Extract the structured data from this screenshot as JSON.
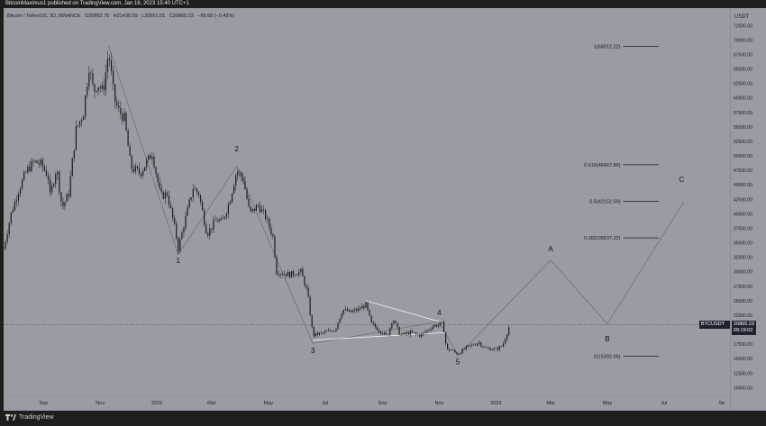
{
  "header": "BitcoinMaximus1 published on TradingView.com, Jan 16, 2023 15:40 UTC+1",
  "legend": {
    "symbol": "Bitcoin / TetherUS, 2D, BINANCE",
    "open": "O20952.76",
    "high": "H21439.59",
    "low": "L20551.01",
    "close": "C20865.23",
    "change": "−89.69 (−0.43%)"
  },
  "currency_label": "USDT",
  "footer": {
    "brand": "TradingView",
    "icon": "tradingview-logo-icon"
  },
  "price_badge": {
    "symbol": "BTCUSDT",
    "price": "20865.23",
    "countdown": "09:19:02"
  },
  "colors": {
    "background": "#9a9ca4",
    "candles": "#1b1b1b",
    "lines": "#6f7278",
    "fib_lines": "#1b1b1b",
    "triangle": "#f2f2f2"
  },
  "chart_data": {
    "type": "candlestick",
    "y_ticks": [
      10000,
      12500,
      15000,
      17500,
      20000,
      22500,
      25000,
      27500,
      30000,
      32500,
      35000,
      37500,
      40000,
      42500,
      45000,
      47500,
      50000,
      52500,
      55000,
      57500,
      60000,
      62500,
      65000,
      67500,
      70000,
      72500
    ],
    "y_tick_labels": [
      "10000.00",
      "12500.00",
      "15000.00",
      "17500.00",
      "20000.00",
      "22500.00",
      "25000.00",
      "27500.00",
      "30000.00",
      "32500.00",
      "35000.00",
      "37500.00",
      "40000.00",
      "42500.00",
      "45000.00",
      "47500.00",
      "50000.00",
      "52500.00",
      "55000.00",
      "57500.00",
      "60000.00",
      "62500.00",
      "65000.00",
      "67500.00",
      "70000.00",
      "72500.00"
    ],
    "x_tick_labels": [
      "Sep",
      "Nov",
      "2022",
      "Mar",
      "May",
      "Jul",
      "Sep",
      "Nov",
      "2023",
      "Mar",
      "May",
      "Jul",
      "Se"
    ],
    "x_tick_dates": [
      "2021-09-01",
      "2021-11-01",
      "2022-01-01",
      "2022-03-01",
      "2022-05-01",
      "2022-07-01",
      "2022-09-01",
      "2022-11-01",
      "2023-01-01",
      "2023-03-01",
      "2023-05-01",
      "2023-07-01",
      "2023-09-01"
    ],
    "ylim": [
      8500,
      75500
    ],
    "xlim": [
      "2021-07-20",
      "2023-09-10"
    ],
    "price_path": [
      [
        "2021-07-20",
        34000
      ],
      [
        "2021-07-28",
        40000
      ],
      [
        "2021-08-05",
        44000
      ],
      [
        "2021-08-14",
        47500
      ],
      [
        "2021-08-22",
        49000
      ],
      [
        "2021-08-30",
        48500
      ],
      [
        "2021-09-07",
        46000
      ],
      [
        "2021-09-08",
        43000
      ],
      [
        "2021-09-15",
        48000
      ],
      [
        "2021-09-21",
        41000
      ],
      [
        "2021-09-28",
        43500
      ],
      [
        "2021-10-06",
        54500
      ],
      [
        "2021-10-14",
        57500
      ],
      [
        "2021-10-20",
        65500
      ],
      [
        "2021-10-25",
        61000
      ],
      [
        "2021-10-29",
        62500
      ],
      [
        "2021-11-04",
        61000
      ],
      [
        "2021-11-10",
        68000
      ],
      [
        "2021-11-16",
        60000
      ],
      [
        "2021-11-20",
        58000
      ],
      [
        "2021-11-27",
        56500
      ],
      [
        "2021-12-04",
        48000
      ],
      [
        "2021-12-14",
        47000
      ],
      [
        "2021-12-27",
        50500
      ],
      [
        "2022-01-05",
        43000
      ],
      [
        "2022-01-12",
        43500
      ],
      [
        "2022-01-21",
        37000
      ],
      [
        "2022-01-24",
        34000
      ],
      [
        "2022-01-30",
        38000
      ],
      [
        "2022-02-09",
        44500
      ],
      [
        "2022-02-15",
        43500
      ],
      [
        "2022-02-24",
        36500
      ],
      [
        "2022-03-06",
        39000
      ],
      [
        "2022-03-12",
        38500
      ],
      [
        "2022-03-20",
        42000
      ],
      [
        "2022-03-28",
        47500
      ],
      [
        "2022-04-04",
        46000
      ],
      [
        "2022-04-11",
        40000
      ],
      [
        "2022-04-20",
        41500
      ],
      [
        "2022-04-28",
        39500
      ],
      [
        "2022-05-06",
        36000
      ],
      [
        "2022-05-10",
        30000
      ],
      [
        "2022-05-24",
        29500
      ],
      [
        "2022-06-05",
        30000
      ],
      [
        "2022-06-12",
        26500
      ],
      [
        "2022-06-18",
        19000
      ],
      [
        "2022-06-30",
        19500
      ],
      [
        "2022-07-12",
        20000
      ],
      [
        "2022-07-20",
        23500
      ],
      [
        "2022-07-28",
        23000
      ],
      [
        "2022-08-06",
        23500
      ],
      [
        "2022-08-14",
        24300
      ],
      [
        "2022-08-20",
        21000
      ],
      [
        "2022-08-28",
        20000
      ],
      [
        "2022-09-06",
        18800
      ],
      [
        "2022-09-12",
        22000
      ],
      [
        "2022-09-20",
        19000
      ],
      [
        "2022-10-01",
        19500
      ],
      [
        "2022-10-12",
        19000
      ],
      [
        "2022-10-26",
        20700
      ],
      [
        "2022-11-05",
        21000
      ],
      [
        "2022-11-09",
        16500
      ],
      [
        "2022-11-14",
        16500
      ],
      [
        "2022-11-21",
        15800
      ],
      [
        "2022-12-01",
        17000
      ],
      [
        "2022-12-14",
        17800
      ],
      [
        "2022-12-20",
        16800
      ],
      [
        "2023-01-01",
        16600
      ],
      [
        "2023-01-08",
        17200
      ],
      [
        "2023-01-12",
        19000
      ],
      [
        "2023-01-16",
        20865
      ]
    ],
    "wave_labels": [
      {
        "text": "1",
        "date": "2022-01-24",
        "y": 31500
      },
      {
        "text": "2",
        "date": "2022-03-28",
        "y": 50800
      },
      {
        "text": "3",
        "date": "2022-06-18",
        "y": 16000
      },
      {
        "text": "4",
        "date": "2022-11-01",
        "y": 22500
      },
      {
        "text": "5",
        "date": "2022-11-21",
        "y": 14000
      },
      {
        "text": "A",
        "date": "2023-03-01",
        "y": 33500
      },
      {
        "text": "B",
        "date": "2023-05-01",
        "y": 18000
      },
      {
        "text": "C",
        "date": "2023-07-20",
        "y": 45500
      }
    ],
    "wave_path": [
      [
        "2021-11-10",
        69000
      ],
      [
        "2022-01-24",
        33000
      ],
      [
        "2022-03-28",
        48200
      ],
      [
        "2022-06-18",
        17600
      ],
      [
        "2022-11-01",
        21400
      ],
      [
        "2022-11-21",
        15500
      ]
    ],
    "projection_path": [
      [
        "2022-11-21",
        15500
      ],
      [
        "2023-03-01",
        32000
      ],
      [
        "2023-05-01",
        21000
      ],
      [
        "2023-07-22",
        42000
      ]
    ],
    "triangle_upper": [
      [
        "2022-08-14",
        25000
      ],
      [
        "2022-11-01",
        21400
      ]
    ],
    "triangle_lower": [
      [
        "2022-06-18",
        18200
      ],
      [
        "2022-11-08",
        19500
      ]
    ],
    "fib_levels": [
      {
        "label": "1(68912.22)",
        "value": 68912.22
      },
      {
        "label": "0.618(48467.86)",
        "value": 48467.86
      },
      {
        "label": "0.5(42152.59)",
        "value": 42152.59
      },
      {
        "label": "0.382(35837.32)",
        "value": 35837.32
      },
      {
        "label": "0(15392.96)",
        "value": 15392.96
      }
    ],
    "last_price": 20865.23
  }
}
